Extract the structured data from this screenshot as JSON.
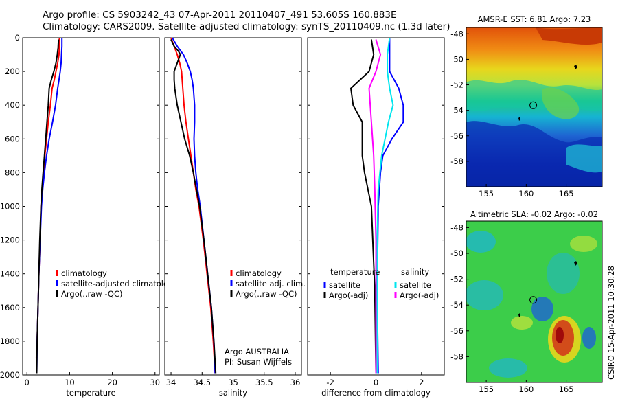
{
  "header": {
    "line1": "Argo profile: CS 5903242_43 07-Apr-2011 20110407_491 53.605S 160.883E",
    "line2": "Climatology: CARS2009. Satellite-adjusted climatology: synTS_20110409.nc (1.3d later)"
  },
  "footer": {
    "credit": "CSIRO 15-Apr-2011 10:30:28",
    "argo_label": "Argo AUSTRALIA",
    "pi_label": "PI: Susan Wijffels"
  },
  "colors": {
    "climatology": "#ff0000",
    "satellite": "#0000ff",
    "argo": "#000000",
    "satellite_diff_salinity": "#00e5ee",
    "argo_diff_salinity": "#ff00ff"
  },
  "chart_data": [
    {
      "type": "line",
      "name": "temperature",
      "xlabel": "temperature",
      "xlim": [
        -1,
        31
      ],
      "ylim": [
        2000,
        0
      ],
      "xticks": [
        0,
        10,
        20,
        30
      ],
      "yticks": [
        0,
        200,
        400,
        600,
        800,
        1000,
        1200,
        1400,
        1600,
        1800,
        2000
      ],
      "legend": [
        "climatology",
        "satellite-adjusted climatology",
        "Argo(..raw -QC)"
      ],
      "series": [
        {
          "name": "climatology",
          "color": "#ff0000",
          "points": [
            [
              7.6,
              0
            ],
            [
              7.6,
              50
            ],
            [
              7.5,
              100
            ],
            [
              7.2,
              150
            ],
            [
              6.8,
              200
            ],
            [
              6.4,
              250
            ],
            [
              5.9,
              300
            ],
            [
              5.5,
              400
            ],
            [
              5.0,
              500
            ],
            [
              4.6,
              600
            ],
            [
              4.2,
              700
            ],
            [
              3.9,
              800
            ],
            [
              3.6,
              900
            ],
            [
              3.3,
              1000
            ],
            [
              3.1,
              1200
            ],
            [
              2.8,
              1400
            ],
            [
              2.6,
              1600
            ],
            [
              2.4,
              1800
            ],
            [
              2.2,
              1900
            ]
          ]
        },
        {
          "name": "satellite-adjusted climatology",
          "color": "#0000ff",
          "points": [
            [
              8.2,
              0
            ],
            [
              8.2,
              50
            ],
            [
              8.1,
              100
            ],
            [
              8.0,
              150
            ],
            [
              7.8,
              200
            ],
            [
              7.5,
              250
            ],
            [
              7.2,
              300
            ],
            [
              6.7,
              400
            ],
            [
              6.0,
              500
            ],
            [
              5.2,
              600
            ],
            [
              4.6,
              700
            ],
            [
              4.1,
              800
            ],
            [
              3.7,
              900
            ],
            [
              3.4,
              1000
            ],
            [
              3.1,
              1200
            ],
            [
              2.8,
              1400
            ],
            [
              2.6,
              1600
            ],
            [
              2.4,
              1800
            ],
            [
              2.3,
              1990
            ]
          ]
        },
        {
          "name": "Argo(..raw -QC)",
          "color": "#000000",
          "points": [
            [
              7.4,
              10
            ],
            [
              7.3,
              60
            ],
            [
              7.1,
              100
            ],
            [
              6.8,
              150
            ],
            [
              6.3,
              200
            ],
            [
              5.7,
              250
            ],
            [
              5.2,
              300
            ],
            [
              5.0,
              400
            ],
            [
              4.7,
              500
            ],
            [
              4.4,
              600
            ],
            [
              4.1,
              700
            ],
            [
              3.8,
              800
            ],
            [
              3.5,
              900
            ],
            [
              3.3,
              1000
            ],
            [
              3.0,
              1200
            ],
            [
              2.8,
              1400
            ],
            [
              2.6,
              1600
            ],
            [
              2.4,
              1800
            ],
            [
              2.3,
              1990
            ]
          ]
        }
      ]
    },
    {
      "type": "line",
      "name": "salinity",
      "xlabel": "salinity",
      "xlim": [
        33.9,
        36.1
      ],
      "ylim": [
        2000,
        0
      ],
      "xticks": [
        34,
        34.5,
        35,
        35.5,
        36
      ],
      "legend": [
        "climatology",
        "satellite adj. clim.",
        "Argo(..raw -QC)"
      ],
      "series": [
        {
          "name": "climatology",
          "color": "#ff0000",
          "points": [
            [
              34.0,
              0
            ],
            [
              34.05,
              50
            ],
            [
              34.1,
              100
            ],
            [
              34.14,
              150
            ],
            [
              34.17,
              200
            ],
            [
              34.19,
              300
            ],
            [
              34.21,
              400
            ],
            [
              34.24,
              500
            ],
            [
              34.28,
              600
            ],
            [
              34.32,
              700
            ],
            [
              34.36,
              800
            ],
            [
              34.4,
              900
            ],
            [
              34.45,
              1000
            ],
            [
              34.52,
              1200
            ],
            [
              34.58,
              1400
            ],
            [
              34.64,
              1600
            ],
            [
              34.68,
              1800
            ],
            [
              34.71,
              1990
            ]
          ]
        },
        {
          "name": "satellite adj. clim.",
          "color": "#0000ff",
          "points": [
            [
              34.02,
              0
            ],
            [
              34.1,
              50
            ],
            [
              34.2,
              100
            ],
            [
              34.26,
              150
            ],
            [
              34.31,
              200
            ],
            [
              34.34,
              250
            ],
            [
              34.36,
              300
            ],
            [
              34.38,
              400
            ],
            [
              34.38,
              500
            ],
            [
              34.37,
              600
            ],
            [
              34.38,
              700
            ],
            [
              34.4,
              800
            ],
            [
              34.43,
              900
            ],
            [
              34.47,
              1000
            ],
            [
              34.53,
              1200
            ],
            [
              34.59,
              1400
            ],
            [
              34.65,
              1600
            ],
            [
              34.69,
              1800
            ],
            [
              34.71,
              1990
            ]
          ]
        },
        {
          "name": "Argo(..raw -QC)",
          "color": "#000000",
          "points": [
            [
              34.0,
              10
            ],
            [
              34.05,
              50
            ],
            [
              34.12,
              80
            ],
            [
              34.15,
              100
            ],
            [
              34.1,
              150
            ],
            [
              34.05,
              200
            ],
            [
              34.05,
              250
            ],
            [
              34.06,
              300
            ],
            [
              34.1,
              400
            ],
            [
              34.16,
              500
            ],
            [
              34.22,
              600
            ],
            [
              34.3,
              700
            ],
            [
              34.36,
              800
            ],
            [
              34.41,
              900
            ],
            [
              34.46,
              1000
            ],
            [
              34.53,
              1200
            ],
            [
              34.59,
              1400
            ],
            [
              34.65,
              1600
            ],
            [
              34.69,
              1800
            ],
            [
              34.72,
              1990
            ]
          ]
        }
      ]
    },
    {
      "type": "line",
      "name": "difference",
      "xlabel": "difference from climatology",
      "xlim": [
        -3,
        3
      ],
      "ylim": [
        2000,
        0
      ],
      "xticks": [
        -2,
        0,
        2
      ],
      "legend_temperature_title": "temperature",
      "legend_salinity_title": "salinity",
      "legend": [
        "satellite",
        "Argo(-adj)",
        "satellite",
        "Argo(-adj)"
      ],
      "series": [
        {
          "name": "satellite",
          "group": "temperature",
          "color": "#0000ff",
          "points": [
            [
              0.6,
              0
            ],
            [
              0.6,
              100
            ],
            [
              0.6,
              200
            ],
            [
              1.0,
              300
            ],
            [
              1.2,
              400
            ],
            [
              1.2,
              500
            ],
            [
              0.7,
              600
            ],
            [
              0.3,
              700
            ],
            [
              0.2,
              800
            ],
            [
              0.1,
              1000
            ],
            [
              0.05,
              1500
            ],
            [
              0.1,
              1990
            ]
          ]
        },
        {
          "name": "Argo(-adj)",
          "group": "temperature",
          "color": "#000000",
          "points": [
            [
              -0.2,
              10
            ],
            [
              -0.1,
              100
            ],
            [
              -0.3,
              200
            ],
            [
              -1.1,
              300
            ],
            [
              -1.0,
              400
            ],
            [
              -0.6,
              500
            ],
            [
              -0.6,
              600
            ],
            [
              -0.6,
              700
            ],
            [
              -0.5,
              800
            ],
            [
              -0.2,
              1000
            ],
            [
              -0.05,
              1500
            ],
            [
              0.0,
              1990
            ]
          ]
        },
        {
          "name": "satellite",
          "group": "salinity",
          "color": "#00e5ee",
          "points": [
            [
              0.6,
              0
            ],
            [
              0.5,
              100
            ],
            [
              0.5,
              200
            ],
            [
              0.6,
              300
            ],
            [
              0.75,
              400
            ],
            [
              0.55,
              500
            ],
            [
              0.25,
              700
            ],
            [
              0.1,
              900
            ],
            [
              0.05,
              1200
            ],
            [
              0.05,
              1990
            ]
          ]
        },
        {
          "name": "Argo(-adj)",
          "group": "salinity",
          "color": "#ff00ff",
          "points": [
            [
              0.0,
              10
            ],
            [
              0.2,
              100
            ],
            [
              0.0,
              200
            ],
            [
              -0.3,
              300
            ],
            [
              -0.2,
              500
            ],
            [
              -0.1,
              700
            ],
            [
              -0.05,
              900
            ],
            [
              0.0,
              1200
            ],
            [
              0.0,
              1990
            ]
          ]
        }
      ]
    },
    {
      "type": "heatmap",
      "name": "sst-map",
      "title": "AMSR-E SST: 6.81 Argo: 7.23",
      "xlim": [
        152.5,
        169.5
      ],
      "ylim": [
        -60,
        -47.5
      ],
      "xticks": [
        155,
        160,
        165
      ],
      "yticks": [
        -48,
        -50,
        -52,
        -54,
        -56,
        -58
      ],
      "argo_position": [
        160.883,
        -53.605
      ]
    },
    {
      "type": "heatmap",
      "name": "sla-map",
      "title": "Altimetric SLA: -0.02 Argo: -0.02",
      "xlim": [
        152.5,
        169.5
      ],
      "ylim": [
        -60,
        -47.5
      ],
      "xticks": [
        155,
        160,
        165
      ],
      "yticks": [
        -48,
        -50,
        -52,
        -54,
        -56,
        -58
      ],
      "argo_position": [
        160.883,
        -53.605
      ]
    }
  ]
}
